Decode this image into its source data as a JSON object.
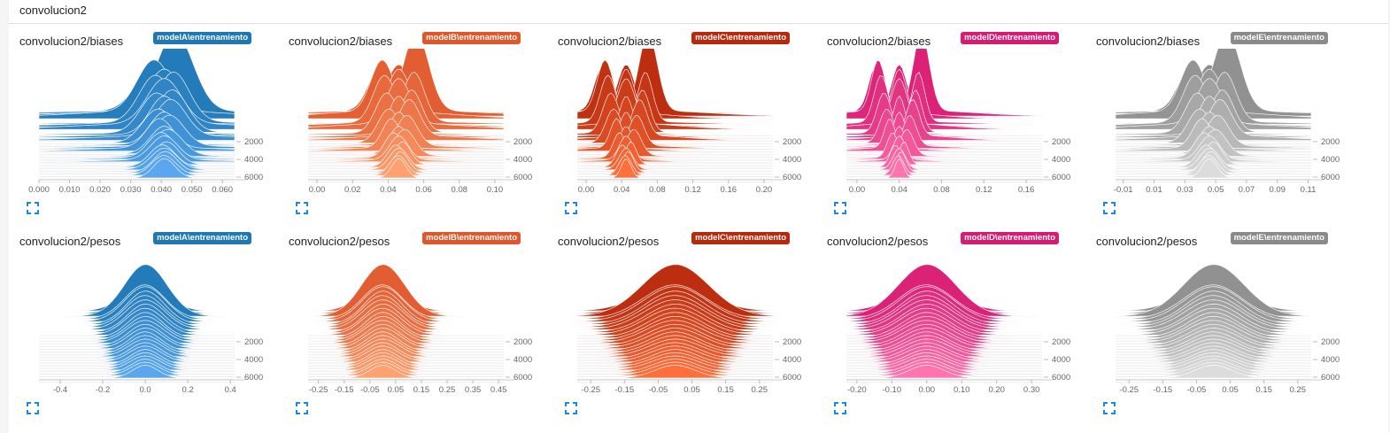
{
  "header": {
    "title": "convolucion2"
  },
  "icons": {
    "expand": "fullscreen-expand-icon"
  },
  "rows": [
    {
      "title": "convolucion2/biases",
      "panels": [
        {
          "run": "modelA\\entrenamiento",
          "color": "#1f77b4",
          "light": "#5aa7f0",
          "x_ticks": [
            "0.000",
            "0.010",
            "0.020",
            "0.030",
            "0.040",
            "0.050",
            "0.060"
          ],
          "x_range": [
            0.0,
            0.064
          ],
          "y_ticks": [
            "2000",
            "4000",
            "6000"
          ],
          "dist": {
            "center": 0.041,
            "sigma": 0.0035,
            "front": 0.021,
            "spread": 0.34,
            "peak": 1.0
          }
        },
        {
          "run": "modelB\\entrenamiento",
          "color": "#e0572b",
          "light": "#ffa070",
          "x_ticks": [
            "0.00",
            "0.02",
            "0.04",
            "0.06",
            "0.08",
            "0.10"
          ],
          "x_range": [
            -0.005,
            0.105
          ],
          "y_ticks": [
            "2000",
            "4000",
            "6000"
          ],
          "dist": {
            "center": 0.046,
            "sigma": 0.004,
            "front": 0.03,
            "spread": 0.55,
            "peak": 1.0
          }
        },
        {
          "run": "modelC\\entrenamiento",
          "color": "#b7280c",
          "light": "#ff6f3c",
          "x_ticks": [
            "0.00",
            "0.04",
            "0.08",
            "0.12",
            "0.16",
            "0.20"
          ],
          "x_range": [
            -0.01,
            0.21
          ],
          "y_ticks": [
            "2000",
            "4000",
            "6000"
          ],
          "dist": {
            "center": 0.045,
            "sigma": 0.0055,
            "front": 0.03,
            "spread": 0.7,
            "peak": 1.0
          }
        },
        {
          "run": "modelD\\entrenamiento",
          "color": "#d81b72",
          "light": "#ff74ad",
          "x_ticks": [
            "0.00",
            "0.04",
            "0.08",
            "0.12",
            "0.16"
          ],
          "x_range": [
            -0.01,
            0.175
          ],
          "y_ticks": [
            "2000",
            "4000",
            "6000"
          ],
          "dist": {
            "center": 0.04,
            "sigma": 0.004,
            "front": 0.028,
            "spread": 0.7,
            "peak": 1.0
          }
        },
        {
          "run": "modelE\\entrenamiento",
          "color": "#8a8a8a",
          "light": "#dcdcdc",
          "x_ticks": [
            "-0.01",
            "0.01",
            "0.03",
            "0.05",
            "0.07",
            "0.09",
            "0.11"
          ],
          "x_range": [
            -0.015,
            0.112
          ],
          "y_ticks": [
            "2000",
            "4000",
            "6000"
          ],
          "dist": {
            "center": 0.046,
            "sigma": 0.005,
            "front": 0.03,
            "spread": 0.55,
            "peak": 1.0
          }
        }
      ]
    },
    {
      "title": "convolucion2/pesos",
      "panels": [
        {
          "run": "modelA\\entrenamiento",
          "color": "#1f77b4",
          "light": "#5aa7f0",
          "x_ticks": [
            "-0.4",
            "-0.2",
            "0.0",
            "0.2",
            "0.4"
          ],
          "x_range": [
            -0.5,
            0.42
          ],
          "y_ticks": [
            "2000",
            "4000",
            "6000"
          ],
          "dist": {
            "center": 0.0,
            "sigma": 0.06,
            "front": 0.07,
            "spread": 0.1,
            "peak": 1.0
          }
        },
        {
          "run": "modelB\\entrenamiento",
          "color": "#e0572b",
          "light": "#ffa070",
          "x_ticks": [
            "-0.25",
            "-0.15",
            "-0.05",
            "0.05",
            "0.15",
            "0.25",
            "0.35",
            "0.45"
          ],
          "x_range": [
            -0.29,
            0.47
          ],
          "y_ticks": [
            "2000",
            "4000",
            "6000"
          ],
          "dist": {
            "center": 0.0,
            "sigma": 0.05,
            "front": 0.06,
            "spread": 0.1,
            "peak": 1.0
          }
        },
        {
          "run": "modelC\\entrenamiento",
          "color": "#b7280c",
          "light": "#ff6f3c",
          "x_ticks": [
            "-0.25",
            "-0.15",
            "-0.05",
            "0.05",
            "0.15",
            "0.25"
          ],
          "x_range": [
            -0.29,
            0.29
          ],
          "y_ticks": [
            "2000",
            "4000",
            "6000"
          ],
          "dist": {
            "center": 0.0,
            "sigma": 0.06,
            "front": 0.075,
            "spread": 0.1,
            "peak": 1.0
          }
        },
        {
          "run": "modelD\\entrenamiento",
          "color": "#d81b72",
          "light": "#ff74ad",
          "x_ticks": [
            "-0.20",
            "-0.10",
            "0.00",
            "0.10",
            "0.20",
            "0.30"
          ],
          "x_range": [
            -0.23,
            0.33
          ],
          "y_ticks": [
            "2000",
            "4000",
            "6000"
          ],
          "dist": {
            "center": 0.0,
            "sigma": 0.05,
            "front": 0.062,
            "spread": 0.1,
            "peak": 1.0
          }
        },
        {
          "run": "modelE\\entrenamiento",
          "color": "#8a8a8a",
          "light": "#dcdcdc",
          "x_ticks": [
            "-0.25",
            "-0.15",
            "-0.05",
            "0.05",
            "0.15",
            "0.25"
          ],
          "x_range": [
            -0.29,
            0.29
          ],
          "y_ticks": [
            "2000",
            "4000",
            "6000"
          ],
          "dist": {
            "center": 0.0,
            "sigma": 0.055,
            "front": 0.07,
            "spread": 0.1,
            "peak": 1.0
          }
        }
      ]
    }
  ]
}
